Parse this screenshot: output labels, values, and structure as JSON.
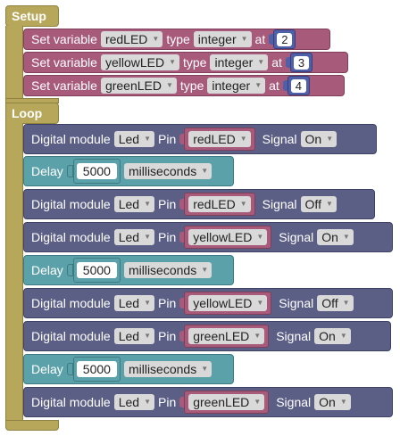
{
  "setup": {
    "label": "Setup",
    "rows": [
      {
        "prefix": "Set variable",
        "name": "redLED",
        "type_label": "type",
        "type_value": "integer",
        "at_label": "at",
        "value": "2"
      },
      {
        "prefix": "Set variable",
        "name": "yellowLED",
        "type_label": "type",
        "type_value": "integer",
        "at_label": "at",
        "value": "3"
      },
      {
        "prefix": "Set variable",
        "name": "greenLED",
        "type_label": "type",
        "type_value": "integer",
        "at_label": "at",
        "value": "4"
      }
    ]
  },
  "loop": {
    "label": "Loop",
    "blocks": [
      {
        "kind": "digital",
        "title": "Digital module",
        "module": "Led",
        "pin_label": "Pin",
        "pin": "redLED",
        "signal_label": "Signal",
        "signal": "On"
      },
      {
        "kind": "delay",
        "title": "Delay",
        "value": "5000",
        "unit": "milliseconds"
      },
      {
        "kind": "digital",
        "title": "Digital module",
        "module": "Led",
        "pin_label": "Pin",
        "pin": "redLED",
        "signal_label": "Signal",
        "signal": "Off"
      },
      {
        "kind": "digital",
        "title": "Digital module",
        "module": "Led",
        "pin_label": "Pin",
        "pin": "yellowLED",
        "signal_label": "Signal",
        "signal": "On"
      },
      {
        "kind": "delay",
        "title": "Delay",
        "value": "5000",
        "unit": "milliseconds"
      },
      {
        "kind": "digital",
        "title": "Digital module",
        "module": "Led",
        "pin_label": "Pin",
        "pin": "yellowLED",
        "signal_label": "Signal",
        "signal": "Off"
      },
      {
        "kind": "digital",
        "title": "Digital module",
        "module": "Led",
        "pin_label": "Pin",
        "pin": "greenLED",
        "signal_label": "Signal",
        "signal": "On"
      },
      {
        "kind": "delay",
        "title": "Delay",
        "value": "5000",
        "unit": "milliseconds"
      },
      {
        "kind": "digital",
        "title": "Digital module",
        "module": "Led",
        "pin_label": "Pin",
        "pin": "greenLED",
        "signal_label": "Signal",
        "signal": "On"
      }
    ]
  },
  "colors": {
    "setup_loop": "#b6a75a",
    "variable_block": "#a85a7b",
    "number_block": "#4f5fa8",
    "digital_block": "#5b5f85",
    "delay_block": "#5ba1aa"
  },
  "icons": {
    "dropdown": "dropdown-caret-icon"
  }
}
